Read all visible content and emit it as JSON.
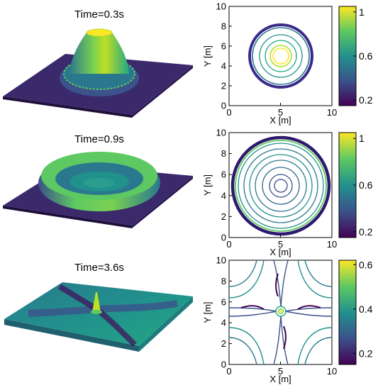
{
  "figure": {
    "rows": [
      {
        "title": "Time=0.3s",
        "contour": {
          "xlabel": "X [m]",
          "ylabel": "Y [m]",
          "xlim": [
            0,
            10
          ],
          "ylim": [
            0,
            10
          ],
          "xticks": [
            "0",
            "5",
            "10"
          ],
          "yticks": [
            "0",
            "2",
            "4",
            "6",
            "8",
            "10"
          ]
        },
        "colorbar": {
          "range": [
            0.15,
            1.05
          ],
          "ticks": [
            {
              "label": "1",
              "value": 1.0
            },
            {
              "label": "0.6",
              "value": 0.6
            },
            {
              "label": "0.2",
              "value": 0.2
            }
          ]
        }
      },
      {
        "title": "Time=0.9s",
        "contour": {
          "xlabel": "X [m]",
          "ylabel": "Y [m]",
          "xlim": [
            0,
            10
          ],
          "ylim": [
            0,
            10
          ],
          "xticks": [
            "0",
            "5",
            "10"
          ],
          "yticks": [
            "0",
            "2",
            "4",
            "6",
            "8",
            "10"
          ]
        },
        "colorbar": {
          "range": [
            0.15,
            1.05
          ],
          "ticks": [
            {
              "label": "1",
              "value": 1.0
            },
            {
              "label": "0.6",
              "value": 0.6
            },
            {
              "label": "0.2",
              "value": 0.2
            }
          ]
        }
      },
      {
        "title": "Time=3.6s",
        "contour": {
          "xlabel": "X [m]",
          "ylabel": "Y [m]",
          "xlim": [
            0,
            10
          ],
          "ylim": [
            0,
            10
          ],
          "xticks": [
            "0",
            "5",
            "10"
          ],
          "yticks": [
            "0",
            "2",
            "4",
            "6",
            "8",
            "10"
          ]
        },
        "colorbar": {
          "range": [
            0.15,
            0.62
          ],
          "ticks": [
            {
              "label": "0.6",
              "value": 0.6
            },
            {
              "label": "0.4",
              "value": 0.4
            },
            {
              "label": "0.2",
              "value": 0.2
            }
          ]
        }
      }
    ],
    "colormap": [
      "#440154",
      "#3b528b",
      "#21918c",
      "#5ec962",
      "#fde725"
    ]
  },
  "chart_data": [
    {
      "type": "surface",
      "title": "Time=0.3s"
    },
    {
      "type": "contour",
      "title": "",
      "xlabel": "X [m]",
      "ylabel": "Y [m]",
      "xlim": [
        0,
        10
      ],
      "ylim": [
        0,
        10
      ],
      "colorbar_range": [
        0.15,
        1.05
      ]
    },
    {
      "type": "surface",
      "title": "Time=0.9s"
    },
    {
      "type": "contour",
      "title": "",
      "xlabel": "X [m]",
      "ylabel": "Y [m]",
      "xlim": [
        0,
        10
      ],
      "ylim": [
        0,
        10
      ],
      "colorbar_range": [
        0.15,
        1.05
      ]
    },
    {
      "type": "surface",
      "title": "Time=3.6s"
    },
    {
      "type": "contour",
      "title": "",
      "xlabel": "X [m]",
      "ylabel": "Y [m]",
      "xlim": [
        0,
        10
      ],
      "ylim": [
        0,
        10
      ],
      "colorbar_range": [
        0.15,
        0.62
      ]
    }
  ]
}
